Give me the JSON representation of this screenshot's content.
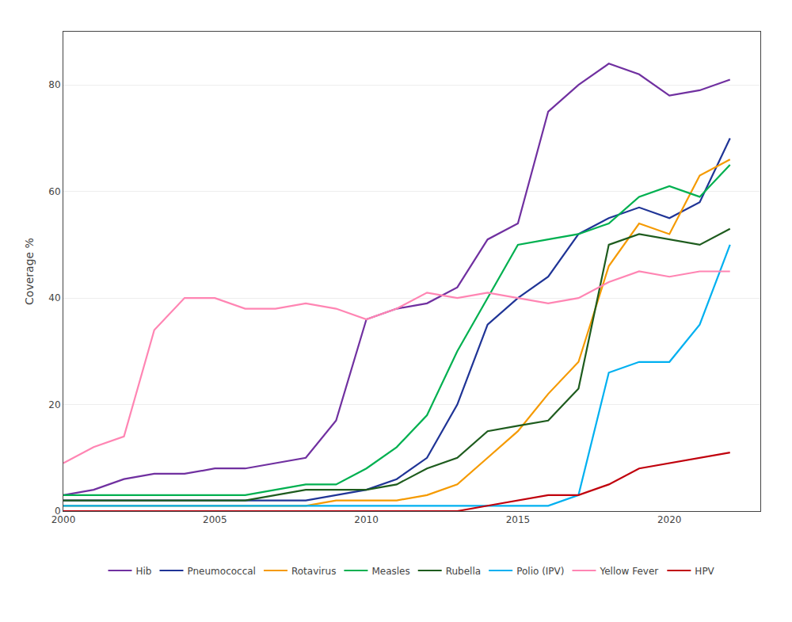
{
  "chart_data": {
    "type": "line",
    "y_label": "Coverage %",
    "x": [
      2000,
      2001,
      2002,
      2003,
      2004,
      2005,
      2006,
      2007,
      2008,
      2009,
      2010,
      2011,
      2012,
      2013,
      2014,
      2015,
      2016,
      2017,
      2018,
      2019,
      2020,
      2021,
      2022
    ],
    "series": [
      {
        "name": "Hib",
        "color": "#7030a0",
        "values": [
          3,
          4,
          6,
          7,
          7,
          8,
          8,
          9,
          10,
          17,
          36,
          38,
          39,
          42,
          51,
          54,
          75,
          80,
          84,
          82,
          78,
          79,
          81
        ]
      },
      {
        "name": "Pneumococcal",
        "color": "#1f3496",
        "values": [
          2,
          2,
          2,
          2,
          2,
          2,
          2,
          2,
          2,
          3,
          4,
          6,
          10,
          20,
          35,
          40,
          44,
          52,
          55,
          57,
          55,
          58,
          70
        ]
      },
      {
        "name": "Rotavirus",
        "color": "#f59a00",
        "values": [
          1,
          1,
          1,
          1,
          1,
          1,
          1,
          1,
          1,
          2,
          2,
          2,
          3,
          5,
          10,
          15,
          22,
          28,
          46,
          54,
          52,
          63,
          66
        ]
      },
      {
        "name": "Measles",
        "color": "#00b050",
        "values": [
          3,
          3,
          3,
          3,
          3,
          3,
          3,
          4,
          5,
          5,
          8,
          12,
          18,
          30,
          40,
          50,
          51,
          52,
          54,
          59,
          61,
          59,
          65
        ]
      },
      {
        "name": "Rubella",
        "color": "#1e5c1e",
        "values": [
          2,
          2,
          2,
          2,
          2,
          2,
          2,
          3,
          4,
          4,
          4,
          5,
          8,
          10,
          15,
          16,
          17,
          23,
          50,
          52,
          51,
          50,
          53
        ]
      },
      {
        "name": "Polio (IPV)",
        "color": "#00b0f0",
        "values": [
          1,
          1,
          1,
          1,
          1,
          1,
          1,
          1,
          1,
          1,
          1,
          1,
          1,
          1,
          1,
          1,
          1,
          3,
          26,
          28,
          28,
          35,
          50
        ]
      },
      {
        "name": "Yellow Fever",
        "color": "#ff85b3",
        "values": [
          9,
          12,
          14,
          34,
          40,
          40,
          38,
          38,
          39,
          38,
          36,
          38,
          41,
          40,
          41,
          40,
          39,
          40,
          43,
          45,
          44,
          45,
          45
        ]
      },
      {
        "name": "HPV",
        "color": "#c0000c",
        "values": [
          0,
          0,
          0,
          0,
          0,
          0,
          0,
          0,
          0,
          0,
          0,
          0,
          0,
          0,
          1,
          2,
          3,
          3,
          5,
          8,
          9,
          10,
          11
        ]
      }
    ],
    "xlim": [
      2000,
      2023
    ],
    "xticks": [
      2000,
      2005,
      2010,
      2015,
      2020
    ],
    "ylim": [
      0,
      90
    ],
    "yticks": [
      0,
      20,
      40,
      60,
      80
    ],
    "grid": "y",
    "legend": "bottom"
  }
}
